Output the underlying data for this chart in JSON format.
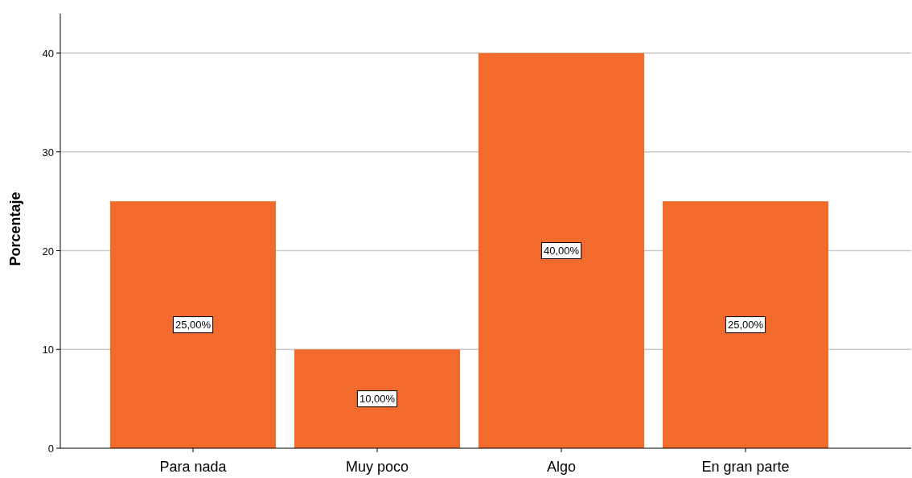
{
  "chart_data": {
    "type": "bar",
    "ylabel": "Porcentaje",
    "categories": [
      "Para nada",
      "Muy poco",
      "Algo",
      "En gran parte"
    ],
    "values": [
      25,
      10,
      40,
      25
    ],
    "color": "#f26a2c",
    "value_labels": [
      "25,00%",
      "10,00%",
      "40,00%",
      "25,00%"
    ],
    "ylim": [
      0,
      44
    ],
    "yticks": [
      0,
      10,
      20,
      30,
      40
    ],
    "grid": "y"
  }
}
